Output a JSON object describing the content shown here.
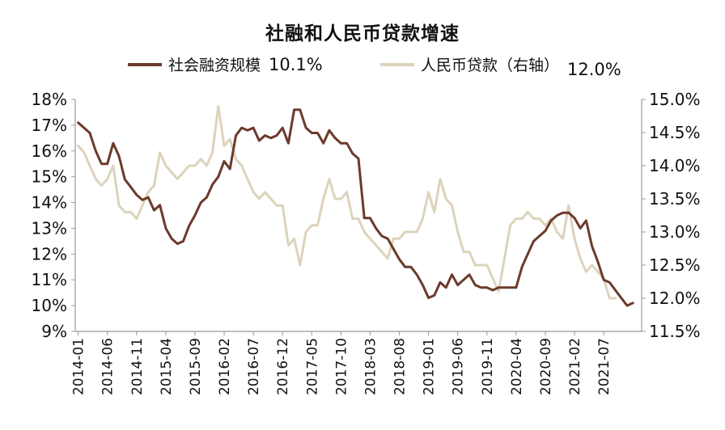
{
  "chart_data": {
    "type": "line",
    "title": "社融和人民币贷款增速",
    "legend_placement": "top",
    "grid": false,
    "colors": {
      "series1": "#6b3a2a",
      "series2": "#ddd3bd",
      "axis": "#999999"
    },
    "x_ticks": [
      "2014-01",
      "2014-06",
      "2014-11",
      "2015-04",
      "2015-09",
      "2016-02",
      "2016-07",
      "2016-12",
      "2017-05",
      "2017-10",
      "2018-03",
      "2018-08",
      "2019-01",
      "2019-06",
      "2019-11",
      "2020-04",
      "2020-09",
      "2021-02",
      "2021-07"
    ],
    "y_left": {
      "min": 9,
      "max": 18,
      "step": 1,
      "ticks": [
        "9%",
        "10%",
        "11%",
        "12%",
        "13%",
        "14%",
        "15%",
        "16%",
        "17%",
        "18%"
      ]
    },
    "y_right": {
      "min": 11.5,
      "max": 15.0,
      "step": 0.5,
      "ticks": [
        "11.5%",
        "12.0%",
        "12.5%",
        "13.0%",
        "13.5%",
        "14.0%",
        "14.5%",
        "15.0%"
      ]
    },
    "series": [
      {
        "name": "社会融资规模",
        "end_label": "10.1%",
        "axis": "left",
        "x_start": "2014-01",
        "values": [
          17.1,
          16.9,
          16.7,
          16.0,
          15.5,
          15.5,
          16.3,
          15.8,
          14.9,
          14.6,
          14.3,
          14.1,
          14.2,
          13.7,
          13.9,
          13.0,
          12.6,
          12.4,
          12.5,
          13.1,
          13.5,
          14.0,
          14.2,
          14.7,
          15.0,
          15.6,
          15.3,
          16.6,
          16.9,
          16.8,
          16.9,
          16.4,
          16.6,
          16.5,
          16.6,
          16.9,
          16.3,
          17.6,
          17.6,
          16.9,
          16.7,
          16.7,
          16.3,
          16.8,
          16.5,
          16.3,
          16.3,
          15.9,
          15.7,
          13.4,
          13.4,
          13.0,
          12.7,
          12.6,
          12.2,
          11.8,
          11.5,
          11.5,
          11.2,
          10.8,
          10.3,
          10.4,
          10.9,
          10.7,
          11.2,
          10.8,
          11.0,
          11.2,
          10.8,
          10.7,
          10.7,
          10.6,
          10.7,
          10.7,
          10.7,
          10.7,
          11.5,
          12.0,
          12.5,
          12.7,
          12.9,
          13.3,
          13.5,
          13.6,
          13.6,
          13.4,
          13.0,
          13.3,
          12.3,
          11.7,
          11.0,
          10.9,
          10.6,
          10.3,
          10.0,
          10.1
        ]
      },
      {
        "name": "人民币贷款（右轴）",
        "end_label": "12.0%",
        "axis": "right",
        "x_start": "2014-01",
        "values": [
          14.3,
          14.2,
          14.0,
          13.8,
          13.7,
          13.8,
          14.0,
          13.4,
          13.3,
          13.3,
          13.2,
          13.4,
          13.6,
          13.7,
          14.2,
          14.0,
          13.9,
          13.8,
          13.9,
          14.0,
          14.0,
          14.1,
          14.0,
          14.2,
          14.9,
          14.3,
          14.4,
          14.1,
          14.0,
          13.8,
          13.6,
          13.5,
          13.6,
          13.5,
          13.4,
          13.4,
          12.8,
          12.9,
          12.5,
          13.0,
          13.1,
          13.1,
          13.5,
          13.8,
          13.5,
          13.5,
          13.6,
          13.2,
          13.2,
          13.0,
          12.9,
          12.8,
          12.7,
          12.6,
          12.9,
          12.9,
          13.0,
          13.0,
          13.0,
          13.2,
          13.6,
          13.3,
          13.8,
          13.5,
          13.4,
          13.0,
          12.7,
          12.7,
          12.5,
          12.5,
          12.5,
          12.3,
          12.1,
          12.6,
          13.1,
          13.2,
          13.2,
          13.3,
          13.2,
          13.2,
          13.1,
          13.2,
          13.0,
          12.9,
          13.4,
          12.9,
          12.6,
          12.4,
          12.5,
          12.4,
          12.3,
          12.0,
          12.0
        ]
      }
    ]
  }
}
